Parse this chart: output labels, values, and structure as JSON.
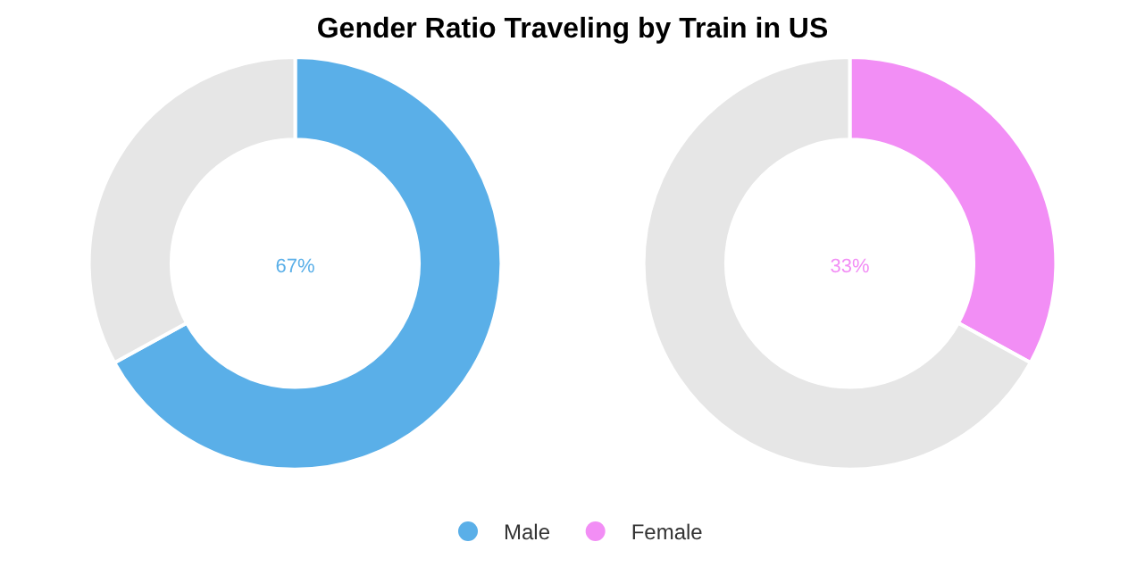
{
  "chart_data": [
    {
      "type": "donut",
      "title": "Gender Ratio Traveling by Train in US",
      "categories": [
        "Male",
        null
      ],
      "values": [
        67,
        33
      ],
      "colors": [
        "#5aafe8",
        "#e6e6e6"
      ],
      "annotations": [
        "67%"
      ],
      "legend": "bottom"
    },
    {
      "type": "donut",
      "categories": [
        "Female",
        null
      ],
      "values": [
        33,
        67
      ],
      "colors": [
        "#f28ef5",
        "#e6e6e6"
      ],
      "annotations": [
        "33%"
      ],
      "legend": "bottom"
    }
  ]
}
